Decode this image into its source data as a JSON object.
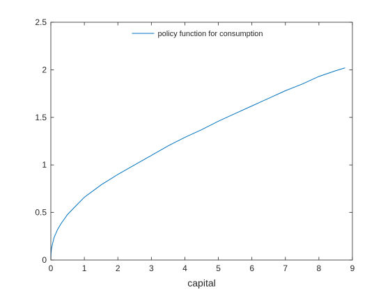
{
  "chart_data": {
    "type": "line",
    "title": "",
    "xlabel": "capital",
    "ylabel": "",
    "xlim": [
      0,
      9
    ],
    "ylim": [
      0,
      2.5
    ],
    "xticks": [
      0,
      1,
      2,
      3,
      4,
      5,
      6,
      7,
      8,
      9
    ],
    "xtick_labels": [
      "0",
      "1",
      "2",
      "3",
      "4",
      "5",
      "6",
      "7",
      "8",
      "9"
    ],
    "yticks": [
      0,
      0.5,
      1,
      1.5,
      2,
      2.5
    ],
    "ytick_labels": [
      "0",
      "0.5",
      "1",
      "1.5",
      "2",
      "2.5"
    ],
    "grid": false,
    "legend_position": "top-center",
    "series": [
      {
        "name": "policy function for consumption",
        "color": "#0072BD",
        "x": [
          0,
          0.005,
          0.02,
          0.05,
          0.1,
          0.2,
          0.3,
          0.5,
          0.75,
          1,
          1.5,
          2,
          2.5,
          3,
          3.5,
          4,
          4.5,
          5,
          5.5,
          6,
          6.5,
          7,
          7.5,
          8,
          8.5,
          8.78
        ],
        "y": [
          0,
          0.07,
          0.12,
          0.17,
          0.24,
          0.32,
          0.38,
          0.48,
          0.57,
          0.66,
          0.79,
          0.9,
          1.0,
          1.1,
          1.2,
          1.29,
          1.37,
          1.46,
          1.54,
          1.62,
          1.7,
          1.78,
          1.85,
          1.93,
          1.99,
          2.02
        ]
      }
    ]
  }
}
